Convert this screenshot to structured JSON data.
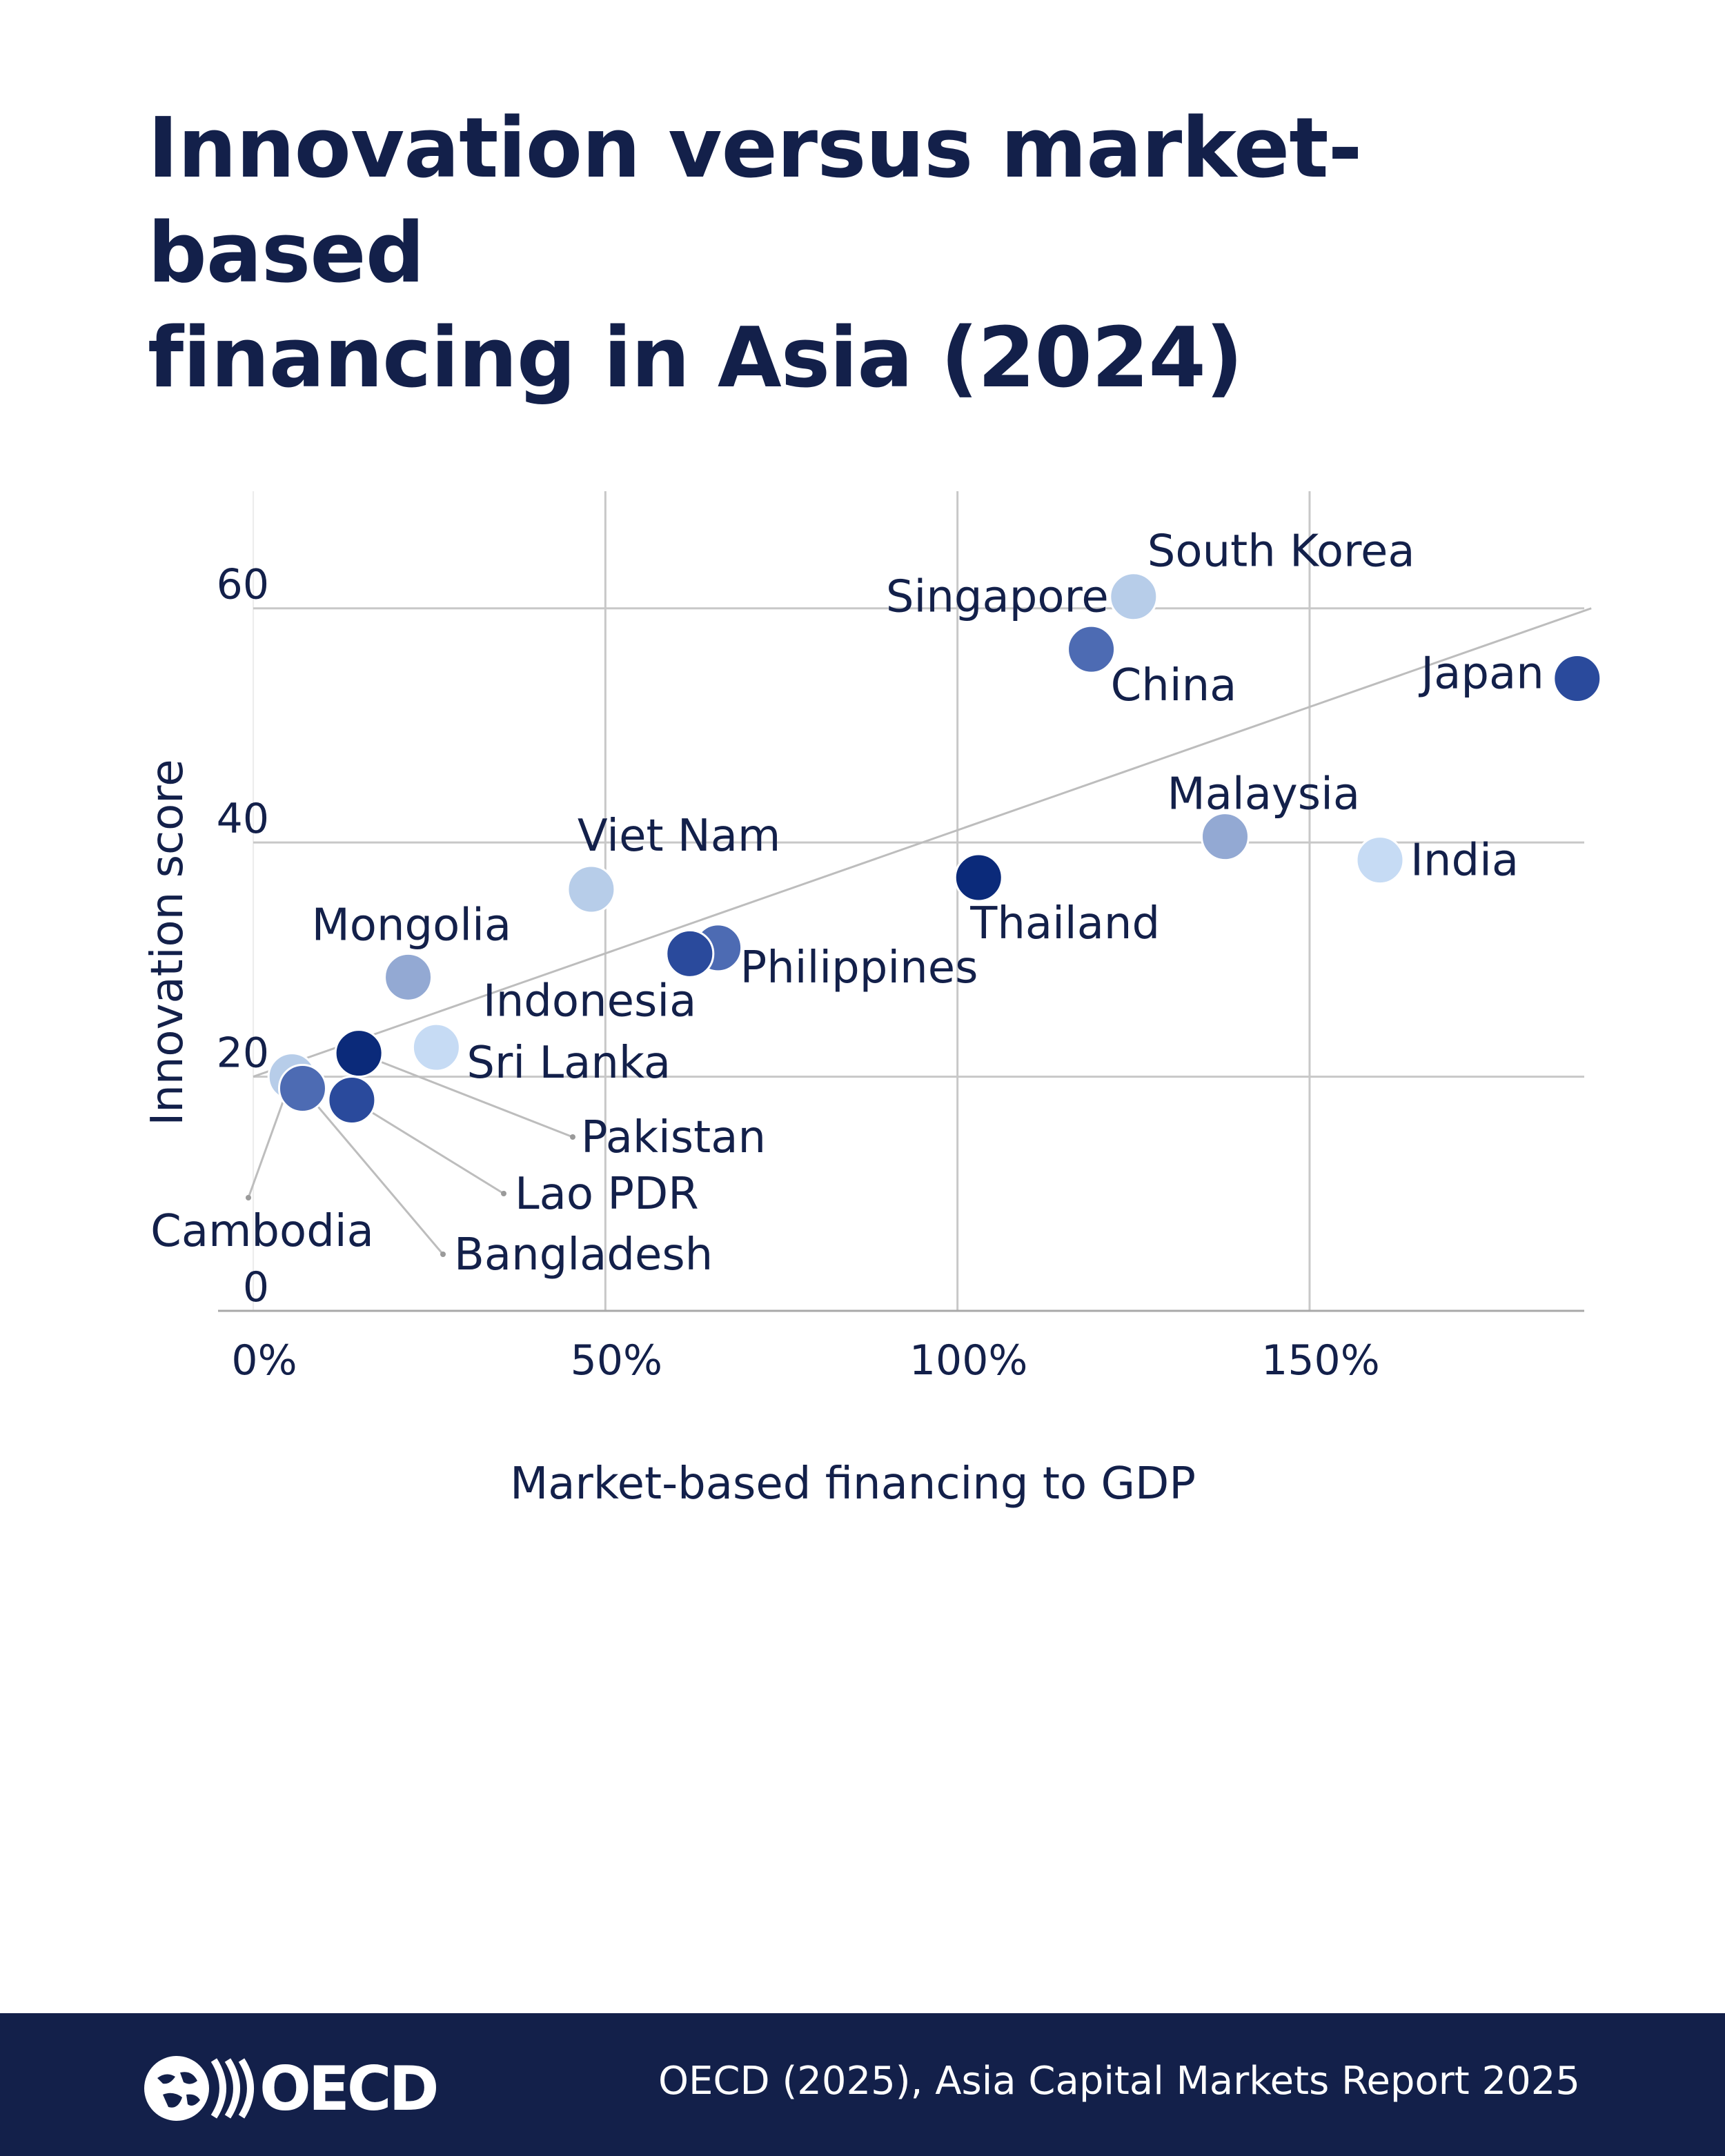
{
  "title_lines": [
    "Innovation versus market-based",
    "financing in Asia (2024)"
  ],
  "footer": {
    "source": "OECD (2025), Asia Capital Markets Report 2025",
    "logo_text": "OECD"
  },
  "chart_data": {
    "type": "scatter",
    "title": "Innovation versus market-based financing in Asia (2024)",
    "xlabel": "Market-based financing to GDP",
    "ylabel": "Innovation score",
    "xlim": [
      -5,
      189
    ],
    "ylim": [
      0,
      70
    ],
    "x_ticks": [
      0,
      50,
      100,
      150
    ],
    "x_tick_labels": [
      "0%",
      "50%",
      "100%",
      "150%"
    ],
    "y_ticks": [
      0,
      20,
      40,
      60
    ],
    "y_tick_labels": [
      "0",
      "20",
      "40",
      "60"
    ],
    "grid": true,
    "trendline": {
      "x": [
        0,
        190
      ],
      "y": [
        20,
        60
      ]
    },
    "points": [
      {
        "name": "South Korea",
        "x": 125,
        "y": 61,
        "color": "#0b2a7a"
      },
      {
        "name": "Singapore",
        "x": 125,
        "y": 61,
        "color": "#b7cde9"
      },
      {
        "name": "China",
        "x": 119,
        "y": 56.5,
        "color": "#4d6bb3"
      },
      {
        "name": "Japan",
        "x": 188,
        "y": 54,
        "color": "#2a4a9c"
      },
      {
        "name": "Malaysia",
        "x": 138,
        "y": 40.5,
        "color": "#93a9d3"
      },
      {
        "name": "India",
        "x": 160,
        "y": 38.5,
        "color": "#c6dbf4"
      },
      {
        "name": "Thailand",
        "x": 103,
        "y": 37,
        "color": "#0b2a7a"
      },
      {
        "name": "Viet Nam",
        "x": 48,
        "y": 36,
        "color": "#b7cde9"
      },
      {
        "name": "Philippines",
        "x": 66,
        "y": 31,
        "color": "#4d6bb3"
      },
      {
        "name": "Indonesia",
        "x": 62,
        "y": 30.5,
        "color": "#2a4a9c"
      },
      {
        "name": "Mongolia",
        "x": 22,
        "y": 28.5,
        "color": "#93a9d3"
      },
      {
        "name": "Sri Lanka",
        "x": 26,
        "y": 22.5,
        "color": "#c6dbf4"
      },
      {
        "name": "Pakistan",
        "x": 15,
        "y": 22,
        "color": "#0b2a7a"
      },
      {
        "name": "Cambodia",
        "x": 5.5,
        "y": 20,
        "color": "#b7cde9"
      },
      {
        "name": "Bangladesh",
        "x": 7,
        "y": 19,
        "color": "#4d6bb3"
      },
      {
        "name": "Lao PDR",
        "x": 14,
        "y": 18,
        "color": "#2a4a9c"
      }
    ]
  }
}
